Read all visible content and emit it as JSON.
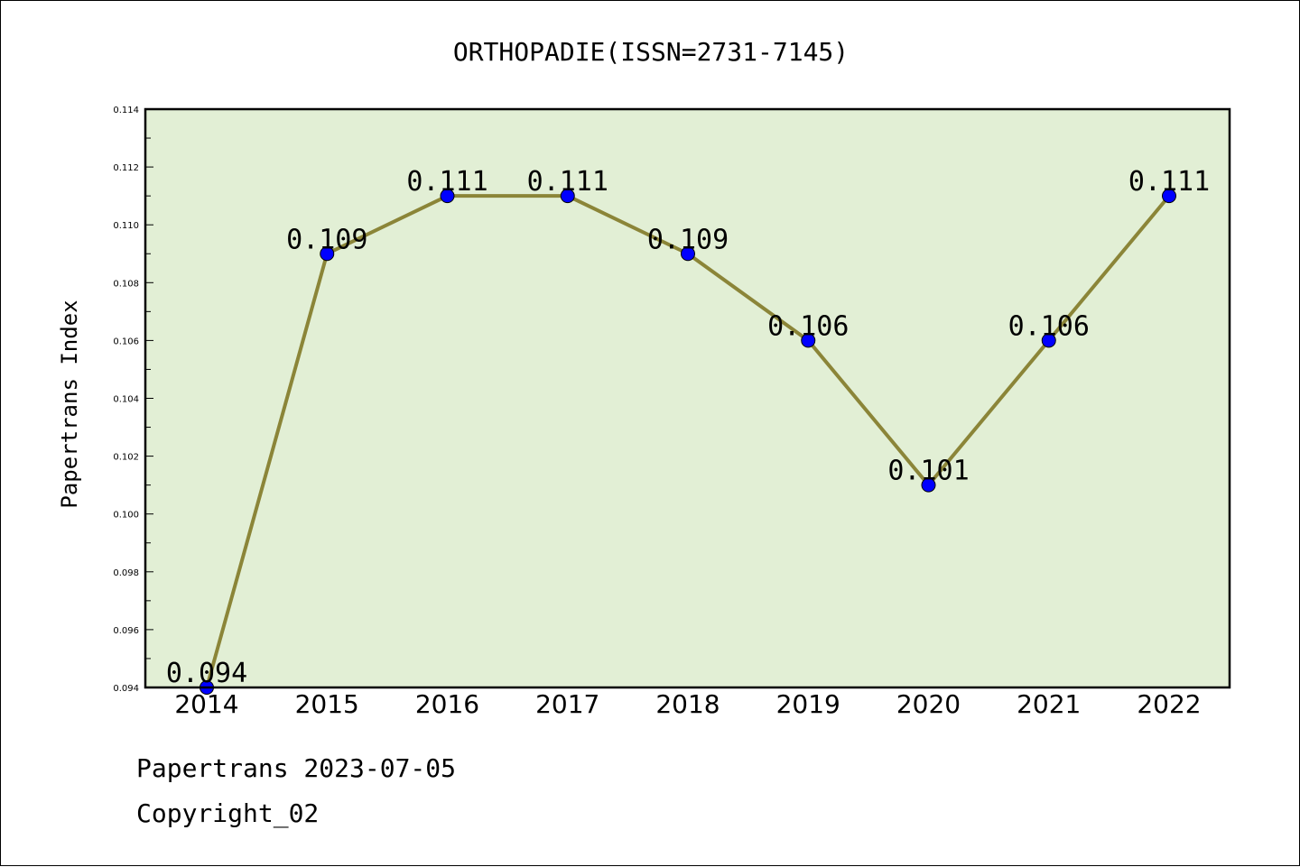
{
  "chart_data": {
    "type": "line",
    "title": "ORTHOPADIE(ISSN=2731-7145)",
    "xlabel": "",
    "ylabel": "Papertrans Index",
    "categories": [
      "2014",
      "2015",
      "2016",
      "2017",
      "2018",
      "2019",
      "2020",
      "2021",
      "2022"
    ],
    "values": [
      0.094,
      0.109,
      0.111,
      0.111,
      0.109,
      0.106,
      0.101,
      0.106,
      0.111
    ],
    "data_labels": [
      "0.094",
      "0.109",
      "0.111",
      "0.111",
      "0.109",
      "0.106",
      "0.101",
      "0.106",
      "0.111"
    ],
    "ylim": [
      0.094,
      0.114
    ],
    "yticks": [
      0.094,
      0.096,
      0.098,
      0.1,
      0.102,
      0.104,
      0.106,
      0.108,
      0.11,
      0.112,
      0.114
    ],
    "ytick_labels": [
      "0.094",
      "0.096",
      "0.098",
      "0.100",
      "0.102",
      "0.104",
      "0.106",
      "0.108",
      "0.110",
      "0.112",
      "0.114"
    ],
    "grid": false,
    "legend": "none",
    "colors": {
      "plot_background": "#e2efd5",
      "line": "#8b8538",
      "marker": "#0000ff"
    }
  },
  "footer": {
    "line1": "Papertrans 2023-07-05",
    "line2": "Copyright_02"
  }
}
